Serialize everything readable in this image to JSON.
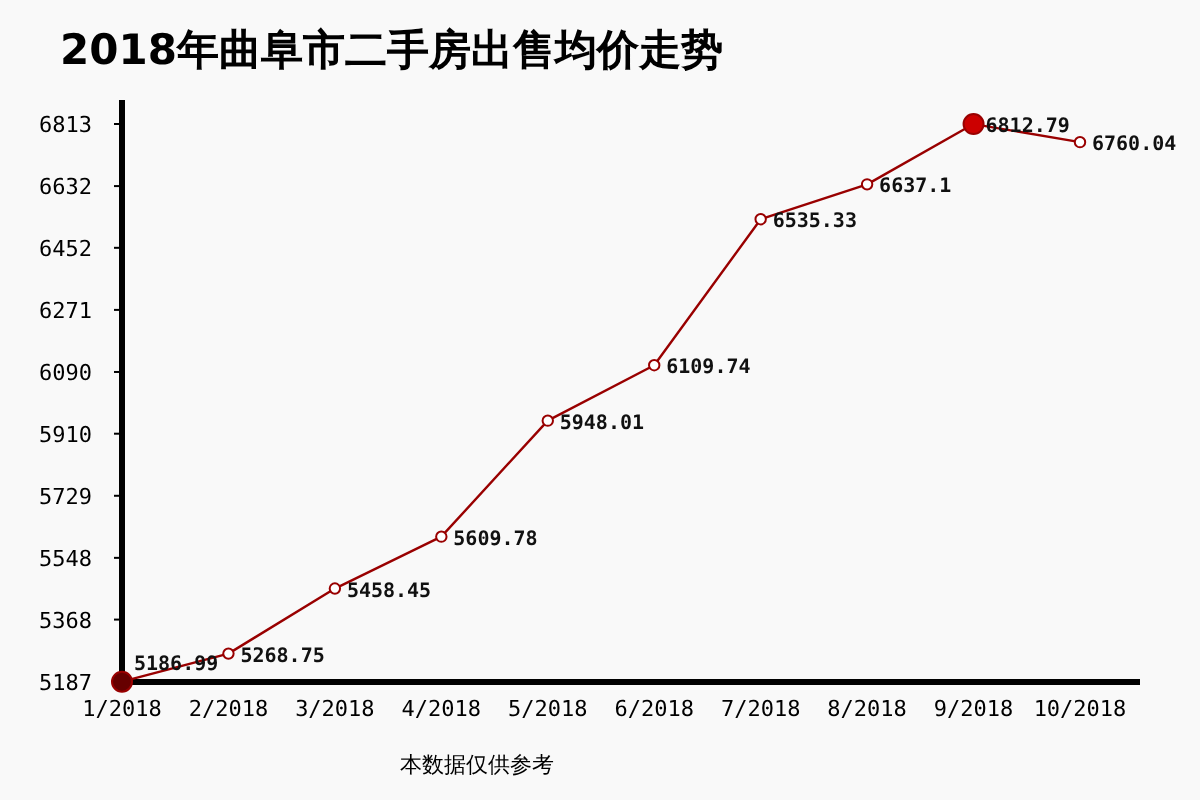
{
  "chart_data": {
    "type": "line",
    "title": "2018年曲阜市二手房出售均价走势",
    "categories": [
      "1/2018",
      "2/2018",
      "3/2018",
      "4/2018",
      "5/2018",
      "6/2018",
      "7/2018",
      "8/2018",
      "9/2018",
      "10/2018"
    ],
    "series": [
      {
        "color": "#990000",
        "values": [
          5186.99,
          5268.75,
          5458.45,
          5609.78,
          5948.01,
          6109.74,
          6535.33,
          6637.1,
          6812.79,
          6760.04
        ],
        "colors": [
          "#660000",
          "#ffffff",
          "#ffffff",
          "#ffffff",
          "#ffffff",
          "#ffffff",
          "#ffffff",
          "#ffffff",
          "#cc0000",
          "#ffffff"
        ]
      }
    ],
    "ylim": [
      5186,
      6883
    ],
    "yticks": [
      5187,
      5368,
      5548,
      5729,
      5910,
      6090,
      6271,
      6452,
      6632,
      6813
    ],
    "data_labels": true,
    "marker": "circle",
    "annotations": [
      "本数据仅供参考"
    ]
  }
}
